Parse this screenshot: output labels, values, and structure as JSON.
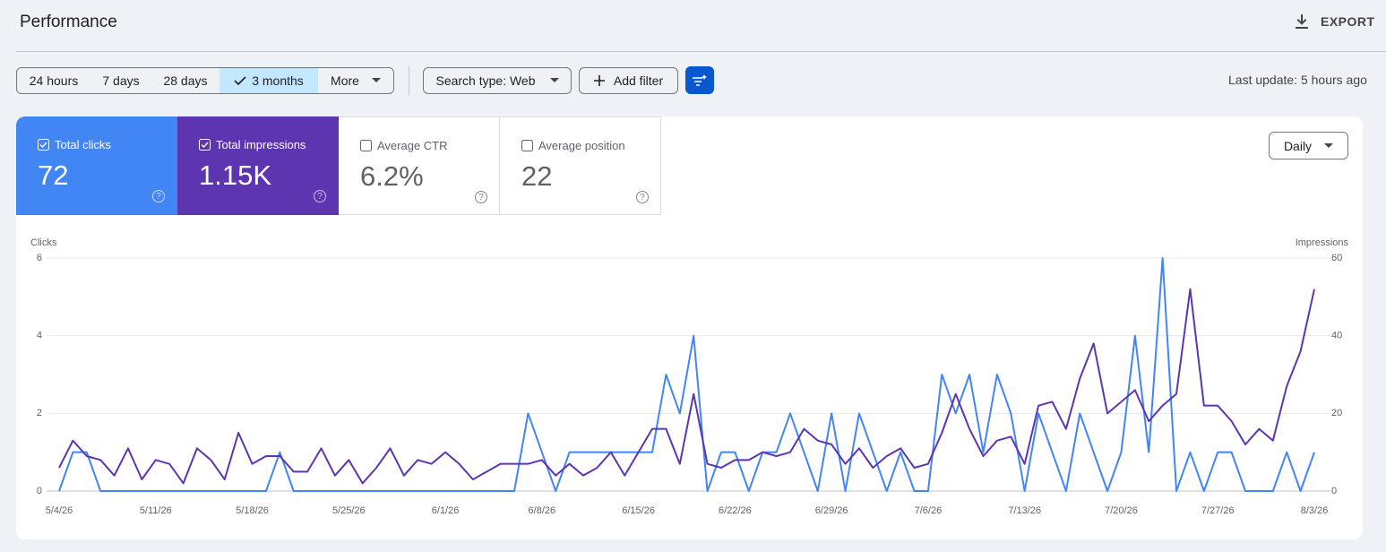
{
  "header": {
    "title": "Performance",
    "export": "EXPORT"
  },
  "toolbar": {
    "ranges": [
      "24 hours",
      "7 days",
      "28 days",
      "3 months",
      "More"
    ],
    "search_type": "Search type: Web",
    "add_filter": "Add filter",
    "last_update": "Last update: 5 hours ago"
  },
  "metrics": [
    {
      "label": "Total clicks",
      "value": "72"
    },
    {
      "label": "Total impressions",
      "value": "1.15K"
    },
    {
      "label": "Average CTR",
      "value": "6.2%"
    },
    {
      "label": "Average position",
      "value": "22"
    }
  ],
  "granularity": "Daily",
  "chart_data": {
    "type": "line",
    "y_label": "Clicks",
    "y2_label": "Impressions",
    "categories": [
      "5/4/26",
      null,
      null,
      null,
      null,
      null,
      null,
      "5/11/26",
      null,
      null,
      null,
      null,
      null,
      null,
      "5/18/26",
      null,
      null,
      null,
      null,
      null,
      null,
      "5/25/26",
      null,
      null,
      null,
      null,
      null,
      null,
      "6/1/26",
      null,
      null,
      null,
      null,
      null,
      null,
      "6/8/26",
      null,
      null,
      null,
      null,
      null,
      null,
      "6/15/26",
      null,
      null,
      null,
      null,
      null,
      null,
      "6/22/26",
      null,
      null,
      null,
      null,
      null,
      null,
      "6/29/26",
      null,
      null,
      null,
      null,
      null,
      null,
      "7/6/26",
      null,
      null,
      null,
      null,
      null,
      null,
      "7/13/26",
      null,
      null,
      null,
      null,
      null,
      null,
      "7/20/26",
      null,
      null,
      null,
      null,
      null,
      null,
      "7/27/26",
      null,
      null,
      null,
      null,
      null,
      null,
      "8/3/26"
    ],
    "series": [
      {
        "color": "#4285f4",
        "values": [
          0,
          1,
          1,
          0,
          0,
          0,
          0,
          0,
          0,
          0,
          0,
          0,
          0,
          0,
          0,
          0,
          1,
          0,
          0,
          0,
          0,
          0,
          0,
          0,
          0,
          0,
          0,
          0,
          0,
          0,
          0,
          0,
          0,
          0,
          2,
          1,
          0,
          1,
          1,
          1,
          1,
          1,
          1,
          1,
          3,
          2,
          4,
          0,
          1,
          1,
          0,
          1,
          1,
          2,
          1,
          0,
          2,
          0,
          2,
          1,
          0,
          1,
          0,
          0,
          3,
          2,
          3,
          1,
          3,
          2,
          0,
          2,
          1,
          0,
          2,
          1,
          0,
          1,
          4,
          1,
          6,
          0,
          1,
          0,
          1,
          1,
          0,
          0,
          0,
          1,
          0,
          1
        ]
      },
      {
        "color": "#5e35b1",
        "axis": "y2",
        "values": [
          6,
          13,
          9,
          8,
          4,
          11,
          3,
          8,
          7,
          2,
          11,
          8,
          3,
          15,
          7,
          9,
          9,
          5,
          5,
          11,
          4,
          8,
          2,
          6,
          11,
          4,
          8,
          7,
          10,
          7,
          3,
          5,
          7,
          7,
          7,
          8,
          4,
          7,
          4,
          6,
          10,
          4,
          10,
          16,
          16,
          7,
          25,
          7,
          6,
          8,
          8,
          10,
          9,
          10,
          16,
          13,
          12,
          7,
          11,
          6,
          9,
          11,
          6,
          7,
          15,
          25,
          16,
          9,
          13,
          14,
          7,
          22,
          23,
          16,
          29,
          38,
          20,
          23,
          26,
          18,
          22,
          25,
          52,
          22,
          22,
          18,
          12,
          16,
          13,
          27,
          36,
          52
        ]
      }
    ],
    "ylim": [
      0,
      6
    ],
    "yticks": [
      0,
      2,
      4,
      6
    ],
    "y2lim": [
      0,
      60
    ],
    "y2ticks": [
      0,
      20,
      40,
      60
    ],
    "grid": true
  }
}
